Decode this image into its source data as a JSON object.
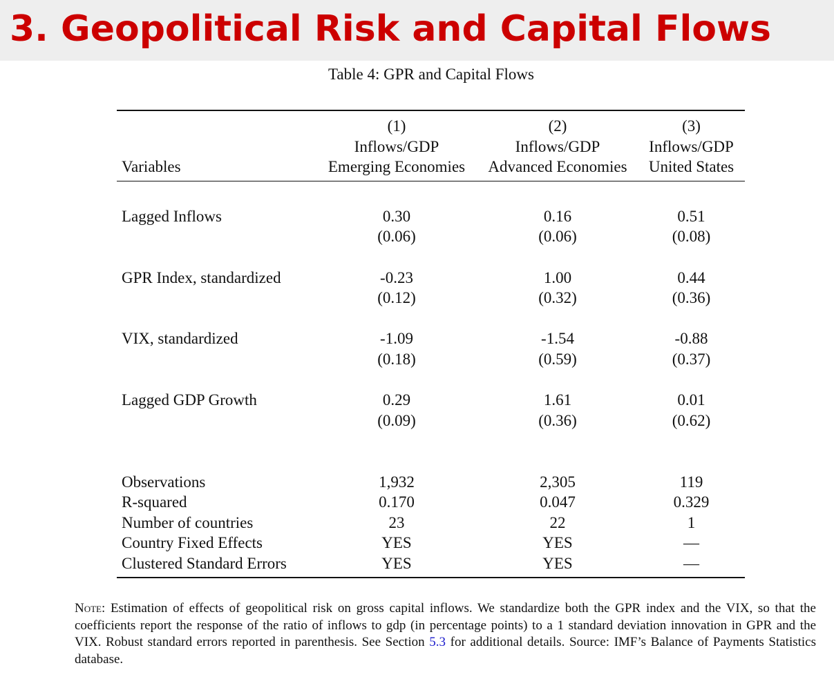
{
  "slide": {
    "title": "3. Geopolitical Risk and Capital Flows"
  },
  "table": {
    "caption": "Table 4: GPR and Capital Flows",
    "header": {
      "variables_label": "Variables",
      "columns": [
        {
          "number": "(1)",
          "dependent": "Inflows/GDP",
          "sample": "Emerging Economies"
        },
        {
          "number": "(2)",
          "dependent": "Inflows/GDP",
          "sample": "Advanced Economies"
        },
        {
          "number": "(3)",
          "dependent": "Inflows/GDP",
          "sample": "United States"
        }
      ]
    },
    "coefficients": [
      {
        "label": "Lagged Inflows",
        "est": [
          "0.30",
          "0.16",
          "0.51"
        ],
        "se": [
          "(0.06)",
          "(0.06)",
          "(0.08)"
        ]
      },
      {
        "label": "GPR Index, standardized",
        "est": [
          "-0.23",
          "1.00",
          "0.44"
        ],
        "se": [
          "(0.12)",
          "(0.32)",
          "(0.36)"
        ]
      },
      {
        "label": "VIX, standardized",
        "est": [
          "-1.09",
          "-1.54",
          "-0.88"
        ],
        "se": [
          "(0.18)",
          "(0.59)",
          "(0.37)"
        ]
      },
      {
        "label": "Lagged GDP Growth",
        "est": [
          "0.29",
          "1.61",
          "0.01"
        ],
        "se": [
          "(0.09)",
          "(0.36)",
          "(0.62)"
        ]
      }
    ],
    "stats": [
      {
        "label": "Observations",
        "values": [
          "1,932",
          "2,305",
          "119"
        ]
      },
      {
        "label": "R-squared",
        "values": [
          "0.170",
          "0.047",
          "0.329"
        ]
      },
      {
        "label": "Number of countries",
        "values": [
          "23",
          "22",
          "1"
        ]
      },
      {
        "label": "Country Fixed Effects",
        "values": [
          "YES",
          "YES",
          "—"
        ]
      },
      {
        "label": "Clustered Standard Errors",
        "values": [
          "YES",
          "YES",
          "—"
        ]
      }
    ]
  },
  "note": {
    "prefix": "Note:",
    "text_before_ref": " Estimation of effects of geopolitical risk on gross capital inflows. We standardize both the GPR index and the VIX, so that the coefficients report the response of the ratio of inflows to gdp (in percentage points) to a 1 standard deviation innovation in GPR and the VIX. Robust standard errors reported in parenthesis. See Section ",
    "ref": "5.3",
    "text_after_ref": " for additional details. Source: IMF’s Balance of Payments Statistics database."
  }
}
